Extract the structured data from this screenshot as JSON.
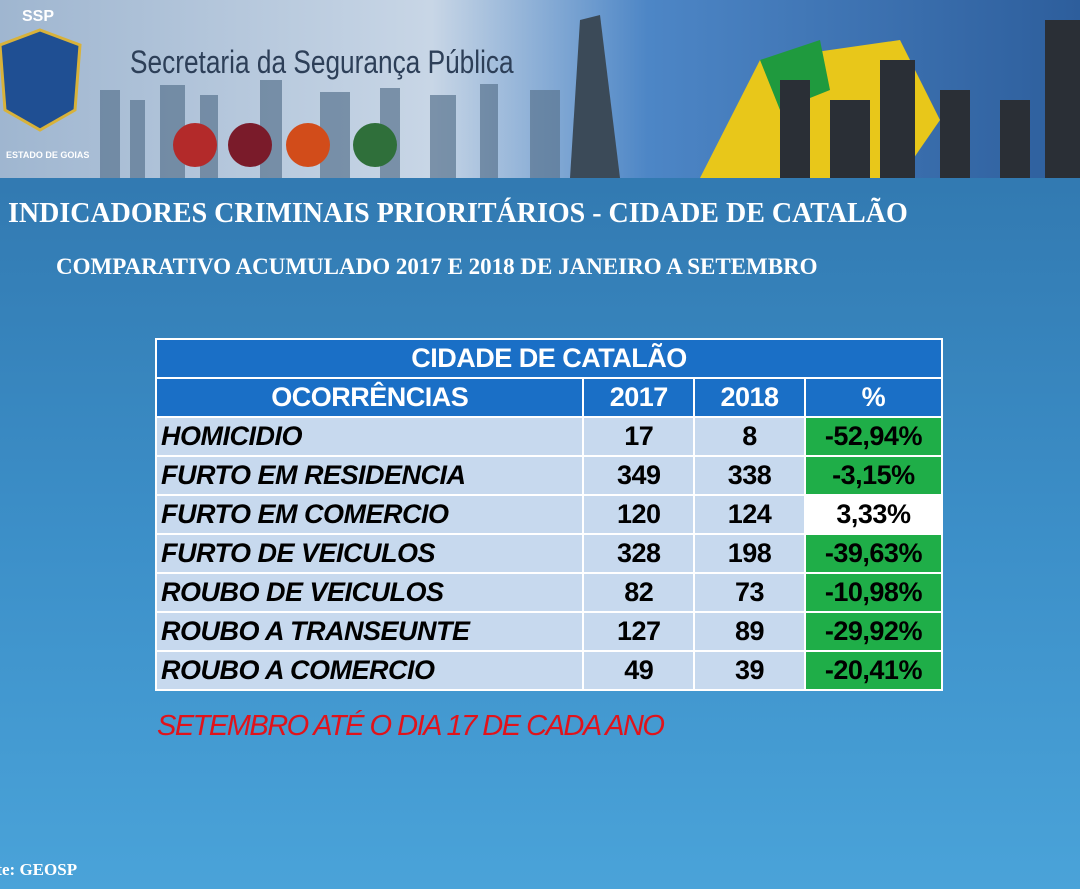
{
  "header": {
    "logo": "SSP",
    "logo_caption": "ESTADO DE GOIAS",
    "title": "Secretaria da Segurança Pública"
  },
  "title": "INDICADORES CRIMINAIS PRIORITÁRIOS - CIDADE  DE CATALÃO",
  "subtitle": "COMPARATIVO ACUMULADO 2017 E 2018 DE JANEIRO A SETEMBRO",
  "table": {
    "caption": "CIDADE DE CATALÃO",
    "columns": [
      "OCORRÊNCIAS",
      "2017",
      "2018",
      "%"
    ],
    "rows": [
      [
        "HOMICIDIO",
        "17",
        "8",
        "-52,94%"
      ],
      [
        "FURTO EM RESIDENCIA",
        "349",
        "338",
        "-3,15%"
      ],
      [
        "FURTO EM COMERCIO",
        "120",
        "124",
        "3,33%"
      ],
      [
        "FURTO DE VEICULOS",
        "328",
        "198",
        "-39,63%"
      ],
      [
        "ROUBO DE VEICULOS",
        "82",
        "73",
        "-10,98%"
      ],
      [
        "ROUBO A TRANSEUNTE",
        "127",
        "89",
        "-29,92%"
      ],
      [
        "ROUBO A COMERCIO",
        "49",
        "39",
        "-20,41%"
      ]
    ],
    "change_colors": [
      "#1fae48",
      "#1fae48",
      "#ffffff",
      "#1fae48",
      "#1fae48",
      "#1fae48",
      "#1fae48"
    ]
  },
  "note": "SETEMBRO ATÉ O DIA 17 DE CADA ANO",
  "source": "Fonte: GEOSP"
}
